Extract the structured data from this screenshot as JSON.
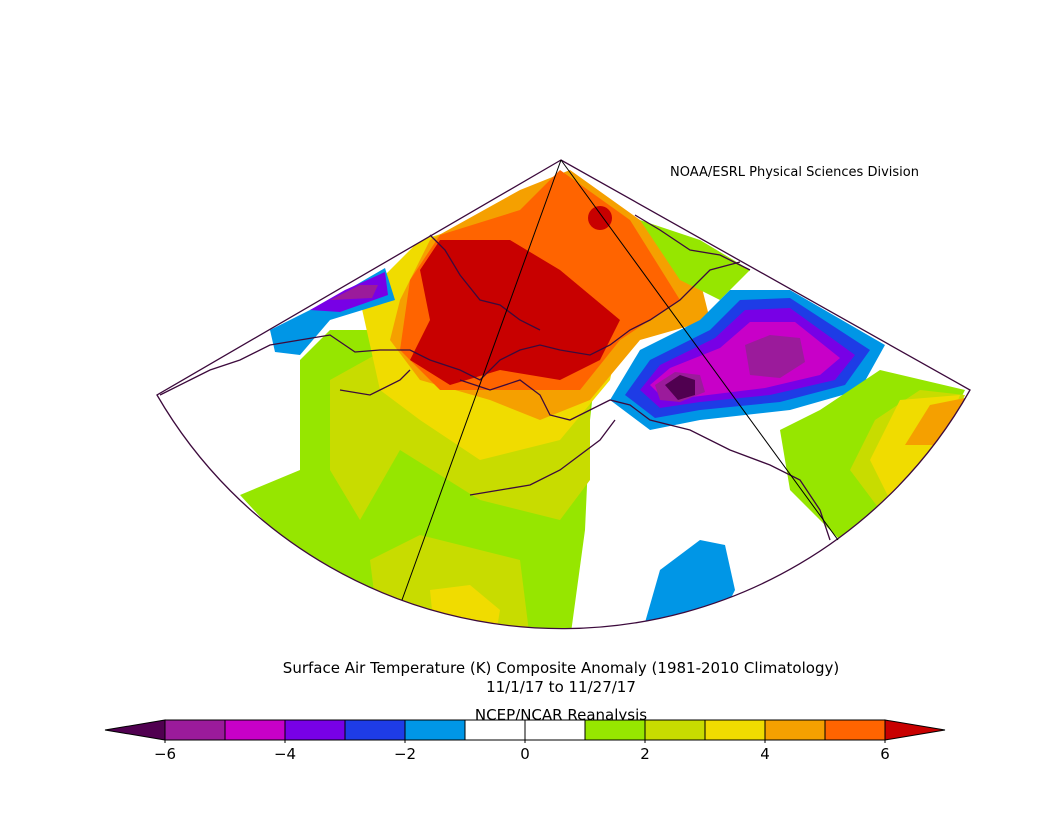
{
  "credit": "NOAA/ESRL Physical Sciences Division",
  "title": "Surface Air Temperature (K) Composite Anomaly (1981-2010 Climatology)",
  "dates": "11/1/17  to 11/27/17",
  "source": "NCEP/NCAR Reanalysis",
  "colorbar": {
    "levels": [
      -6,
      -5,
      -4,
      -3,
      -2,
      -1,
      0,
      1,
      2,
      3,
      4,
      5,
      6
    ],
    "colors": [
      "#500050",
      "#9b1b9b",
      "#c800c8",
      "#7800e6",
      "#1e3ce6",
      "#0096e6",
      "#ffffff",
      "#ffffff",
      "#96e600",
      "#c8dc00",
      "#f0dc00",
      "#f5a000",
      "#ff6400",
      "#c80000"
    ],
    "ticks": [
      {
        "value": -6,
        "label": "−6"
      },
      {
        "value": -4,
        "label": "−4"
      },
      {
        "value": -2,
        "label": "−2"
      },
      0,
      2,
      4,
      6
    ]
  }
}
